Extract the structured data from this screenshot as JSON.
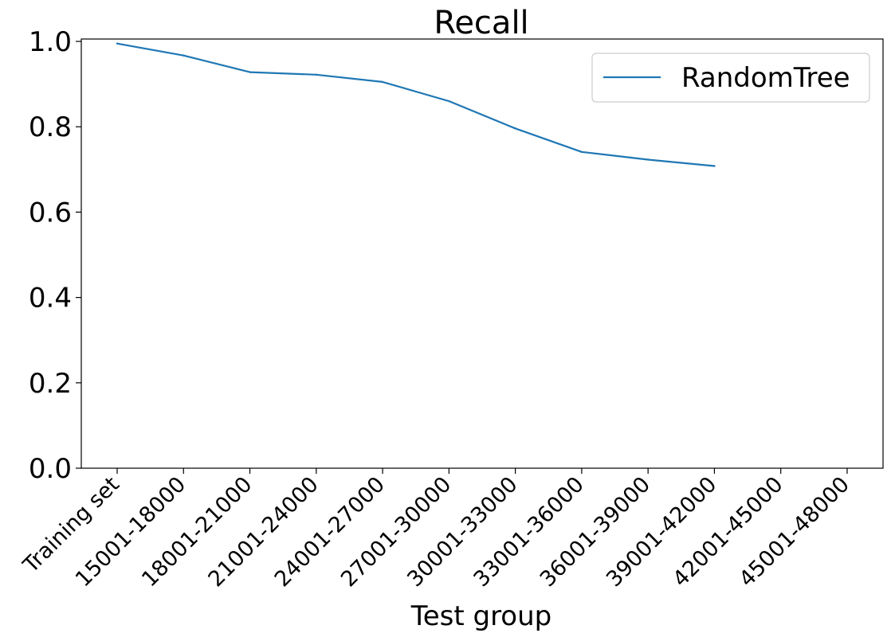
{
  "chart_data": {
    "type": "line",
    "title": "Recall",
    "xlabel": "Test group",
    "ylabel": "",
    "categories": [
      "Training set",
      "15001-18000",
      "18001-21000",
      "21001-24000",
      "24001-27000",
      "27001-30000",
      "30001-33000",
      "33001-36000",
      "36001-39000",
      "39001-42000",
      "42001-45000",
      "45001-48000"
    ],
    "ylim": [
      0.0,
      1.0
    ],
    "yticks": [
      "0.0",
      "0.2",
      "0.4",
      "0.6",
      "0.8",
      "1.0"
    ],
    "grid": false,
    "legend_position": "top-right",
    "series": [
      {
        "name": "RandomTree",
        "color": "#1f77b4",
        "values": [
          0.995,
          0.967,
          0.928,
          0.922,
          0.905,
          0.86,
          0.796,
          0.741,
          0.723,
          0.708,
          null,
          null
        ]
      }
    ]
  }
}
